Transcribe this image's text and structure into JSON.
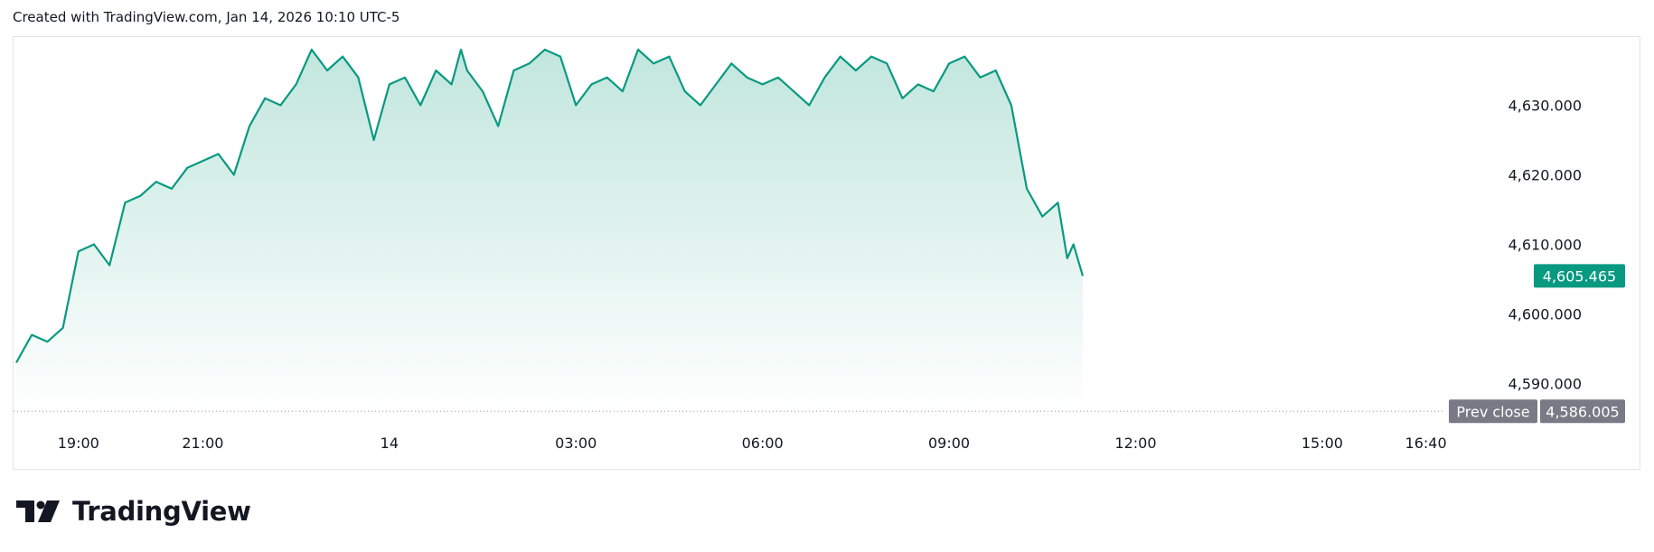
{
  "header": {
    "text": "Created with TradingView.com, Jan 14, 2026 10:10 UTC-5"
  },
  "brand": {
    "name": "TradingView"
  },
  "colors": {
    "line": "#089981",
    "fill_top": "#c1e6dd",
    "fill_bottom": "#ffffff",
    "prev_close_tag": "#787b86",
    "last_price_tag": "#089981"
  },
  "chart_data": {
    "type": "area",
    "y_ticks": [
      "4,630.000",
      "4,620.000",
      "4,610.000",
      "4,600.000",
      "4,590.000"
    ],
    "y_tick_values": [
      4630,
      4620,
      4610,
      4600,
      4590
    ],
    "x_ticks": [
      "19:00",
      "21:00",
      "14",
      "03:00",
      "06:00",
      "09:00",
      "12:00",
      "15:00",
      "16:40"
    ],
    "x_tick_hours": [
      19,
      21,
      24,
      27,
      30,
      33,
      36,
      39,
      40.667
    ],
    "ylim": [
      4584,
      4639
    ],
    "last_price": {
      "label": "4,605.465",
      "value": 4605.465
    },
    "prev_close": {
      "label": "Prev close",
      "value_label": "4,586.005",
      "value": 4586.005
    },
    "series": [
      {
        "x_hours": [
          18.0,
          18.25,
          18.5,
          18.75,
          19.0,
          19.25,
          19.5,
          19.75,
          20.0,
          20.25,
          20.5,
          20.75,
          21.0,
          21.25,
          21.5,
          21.75,
          22.0,
          22.25,
          22.5,
          22.75,
          23.0,
          23.25,
          23.5,
          23.75,
          24.0,
          24.25,
          24.5,
          24.75,
          25.0,
          25.15,
          25.25,
          25.5,
          25.75,
          26.0,
          26.25,
          26.5,
          26.75,
          27.0,
          27.25,
          27.5,
          27.75,
          28.0,
          28.25,
          28.5,
          28.75,
          29.0,
          29.25,
          29.5,
          29.75,
          30.0,
          30.25,
          30.5,
          30.75,
          31.0,
          31.25,
          31.5,
          31.75,
          32.0,
          32.25,
          32.5,
          32.75,
          33.0,
          33.25,
          33.5,
          33.75,
          34.0,
          34.25,
          34.5,
          34.75,
          34.9,
          35.0,
          35.15
        ],
        "values": [
          4593,
          4597,
          4596,
          4598,
          4609,
          4610,
          4607,
          4616,
          4617,
          4619,
          4618,
          4621,
          4622,
          4623,
          4620,
          4627,
          4631,
          4630,
          4633,
          4638,
          4635,
          4637,
          4634,
          4625,
          4633,
          4634,
          4630,
          4635,
          4633,
          4638,
          4635,
          4632,
          4627,
          4635,
          4636,
          4638,
          4637,
          4630,
          4633,
          4634,
          4632,
          4638,
          4636,
          4637,
          4632,
          4630,
          4633,
          4636,
          4634,
          4633,
          4634,
          4632,
          4630,
          4634,
          4637,
          4635,
          4637,
          4636,
          4631,
          4633,
          4632,
          4636,
          4637,
          4634,
          4635,
          4630,
          4618,
          4614,
          4616,
          4608,
          4610,
          4605.465
        ]
      }
    ]
  }
}
